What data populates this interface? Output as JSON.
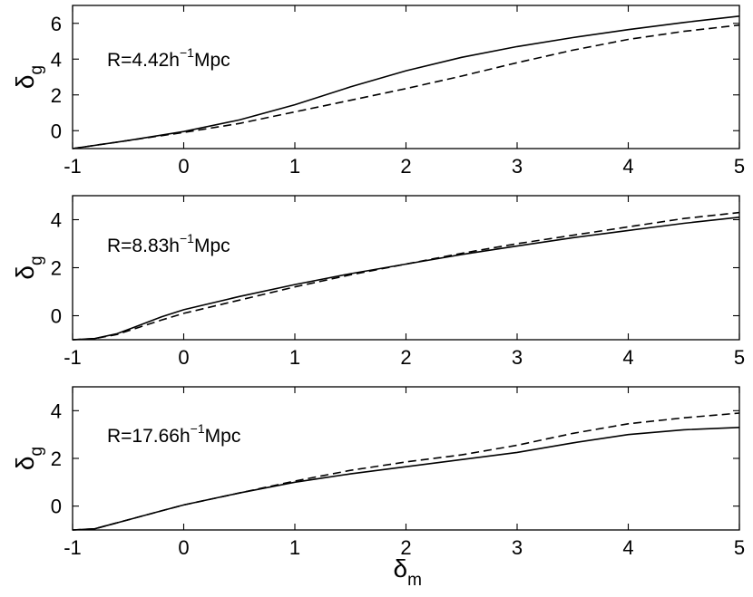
{
  "chart_data": [
    {
      "type": "line",
      "annotation": {
        "prefix": "R=4.42h",
        "sup": "−1",
        "suffix": "Mpc"
      },
      "ylabel": {
        "main": "δ",
        "sub": "g"
      },
      "xlabel": {
        "main": "",
        "sub": ""
      },
      "xlim": [
        -1,
        5
      ],
      "ylim": [
        -1,
        7
      ],
      "xticks": [
        -1,
        0,
        1,
        2,
        3,
        4,
        5
      ],
      "yticks": [
        0,
        2,
        4,
        6
      ],
      "series": [
        {
          "style": "solid",
          "x": [
            -1,
            -0.5,
            0,
            0.5,
            1,
            1.5,
            2,
            2.5,
            3,
            3.5,
            4,
            4.5,
            5
          ],
          "y": [
            -1,
            -0.55,
            -0.05,
            0.6,
            1.45,
            2.45,
            3.35,
            4.1,
            4.7,
            5.2,
            5.65,
            6.05,
            6.4
          ]
        },
        {
          "style": "dashed",
          "x": [
            -1,
            -0.5,
            0,
            0.5,
            1,
            1.5,
            2,
            2.5,
            3,
            3.5,
            4,
            4.5,
            5
          ],
          "y": [
            -1,
            -0.55,
            -0.1,
            0.4,
            1.05,
            1.7,
            2.35,
            3.05,
            3.8,
            4.5,
            5.1,
            5.55,
            5.9
          ]
        }
      ]
    },
    {
      "type": "line",
      "annotation": {
        "prefix": "R=8.83h",
        "sup": "−1",
        "suffix": "Mpc"
      },
      "ylabel": {
        "main": "δ",
        "sub": "g"
      },
      "xlabel": {
        "main": "",
        "sub": ""
      },
      "xlim": [
        -1,
        5
      ],
      "ylim": [
        -1,
        5
      ],
      "xticks": [
        -1,
        0,
        1,
        2,
        3,
        4,
        5
      ],
      "yticks": [
        0,
        2,
        4
      ],
      "series": [
        {
          "style": "solid",
          "x": [
            -1,
            -0.8,
            -0.6,
            -0.4,
            -0.2,
            0,
            0.5,
            1,
            1.5,
            2,
            2.5,
            3,
            3.5,
            4,
            4.5,
            5
          ],
          "y": [
            -1,
            -0.95,
            -0.75,
            -0.4,
            -0.05,
            0.25,
            0.8,
            1.3,
            1.75,
            2.15,
            2.55,
            2.9,
            3.25,
            3.55,
            3.85,
            4.1
          ]
        },
        {
          "style": "dashed",
          "x": [
            -1,
            -0.8,
            -0.6,
            -0.4,
            -0.2,
            0,
            0.5,
            1,
            1.5,
            2,
            2.5,
            3,
            3.5,
            4,
            4.5,
            5
          ],
          "y": [
            -1,
            -0.95,
            -0.78,
            -0.48,
            -0.18,
            0.1,
            0.65,
            1.2,
            1.7,
            2.15,
            2.6,
            3.0,
            3.35,
            3.7,
            4.05,
            4.3
          ]
        }
      ]
    },
    {
      "type": "line",
      "annotation": {
        "prefix": "R=17.66h",
        "sup": "−1",
        "suffix": "Mpc"
      },
      "ylabel": {
        "main": "δ",
        "sub": "g"
      },
      "xlabel": {
        "main": "δ",
        "sub": "m"
      },
      "xlim": [
        -1,
        5
      ],
      "ylim": [
        -1,
        5
      ],
      "xticks": [
        -1,
        0,
        1,
        2,
        3,
        4,
        5
      ],
      "yticks": [
        0,
        2,
        4
      ],
      "series": [
        {
          "style": "solid",
          "x": [
            -1,
            -0.8,
            -0.6,
            -0.4,
            -0.2,
            0,
            0.5,
            1,
            1.5,
            2,
            2.5,
            3,
            3.5,
            4,
            4.5,
            5
          ],
          "y": [
            -1,
            -0.95,
            -0.7,
            -0.45,
            -0.2,
            0.05,
            0.55,
            1.0,
            1.35,
            1.65,
            1.95,
            2.25,
            2.65,
            3.0,
            3.2,
            3.3
          ]
        },
        {
          "style": "dashed",
          "x": [
            -1,
            -0.8,
            -0.6,
            -0.4,
            -0.2,
            0,
            0.5,
            1,
            1.5,
            2,
            2.5,
            3,
            3.5,
            4,
            4.5,
            5
          ],
          "y": [
            -1,
            -0.95,
            -0.7,
            -0.45,
            -0.2,
            0.05,
            0.55,
            1.05,
            1.5,
            1.85,
            2.15,
            2.55,
            3.05,
            3.45,
            3.7,
            3.9
          ]
        }
      ]
    }
  ]
}
